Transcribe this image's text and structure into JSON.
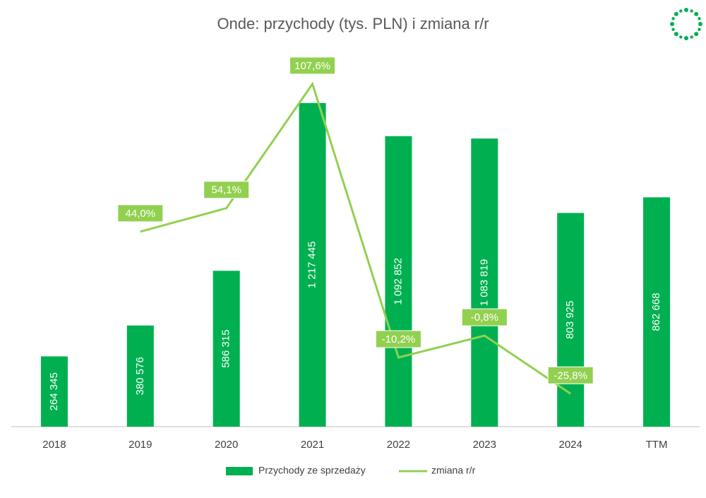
{
  "chart_data": {
    "type": "bar",
    "title": "Onde: przychody (tys. PLN) i zmiana r/r",
    "categories": [
      "2018",
      "2019",
      "2020",
      "2021",
      "2022",
      "2023",
      "2024",
      "TTM"
    ],
    "ylim": [
      0,
      1310000
    ],
    "y2lim": [
      -40,
      110
    ],
    "series": [
      {
        "name": "Przychody ze sprzedaży",
        "type": "bar",
        "color": "#00b050",
        "values": [
          264345,
          380576,
          586315,
          1217445,
          1092852,
          1083819,
          803925,
          862668
        ],
        "value_labels": [
          "264 345",
          "380 576",
          "586 315",
          "1 217 445",
          "1 092 852",
          "1 083 819",
          "803 925",
          "862 668"
        ]
      },
      {
        "name": "zmiana r/r",
        "type": "line",
        "axis": "y2",
        "color": "#92d050",
        "values": [
          null,
          44.0,
          54.1,
          107.6,
          -10.2,
          -0.8,
          -25.8,
          null
        ],
        "value_labels": [
          null,
          "44,0%",
          "54,1%",
          "107,6%",
          "-10,2%",
          "-0,8%",
          "-25,8%",
          null
        ]
      }
    ]
  }
}
